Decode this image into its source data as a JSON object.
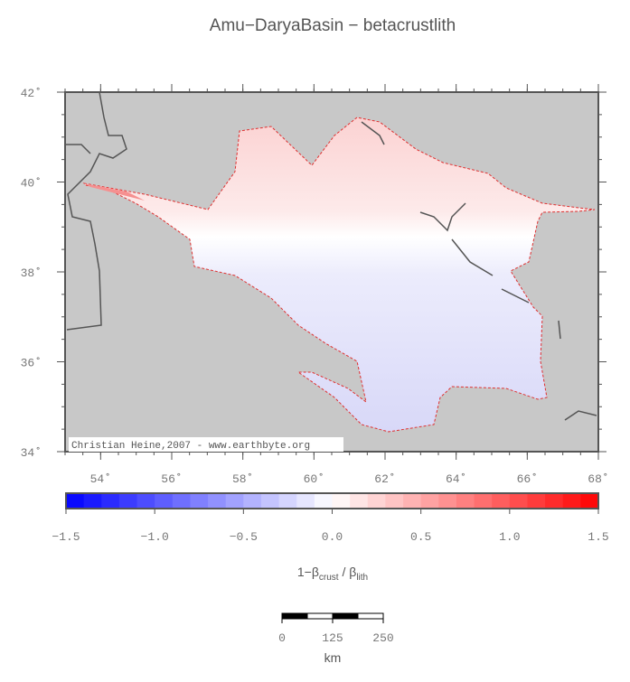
{
  "title": "Amu−DaryaBasin − betacrustlith",
  "map": {
    "lon_lim": [
      53,
      68
    ],
    "lat_lim": [
      34,
      42
    ],
    "lon_ticks": [
      {
        "value": 54,
        "label": "54˚"
      },
      {
        "value": 56,
        "label": "56˚"
      },
      {
        "value": 58,
        "label": "58˚"
      },
      {
        "value": 60,
        "label": "60˚"
      },
      {
        "value": 62,
        "label": "62˚"
      },
      {
        "value": 64,
        "label": "64˚"
      },
      {
        "value": 66,
        "label": "66˚"
      },
      {
        "value": 68,
        "label": "68˚"
      }
    ],
    "lat_ticks": [
      {
        "value": 34,
        "label": "34˚"
      },
      {
        "value": 36,
        "label": "36˚"
      },
      {
        "value": 38,
        "label": "38˚"
      },
      {
        "value": 40,
        "label": "40˚"
      },
      {
        "value": 42,
        "label": "42˚"
      }
    ],
    "credit": "Christian Heine,2007 - www.earthbyte.org"
  },
  "colorbar": {
    "lim": [
      -1.5,
      1.5
    ],
    "colors": [
      "#0000ff",
      "#ffffff",
      "#ff0000"
    ],
    "ticks": [
      {
        "value": -1.5,
        "label": "−1.5"
      },
      {
        "value": -1.0,
        "label": "−1.0"
      },
      {
        "value": -0.5,
        "label": "−0.5"
      },
      {
        "value": 0,
        "label": "0.0"
      },
      {
        "value": 0.5,
        "label": "0.5"
      },
      {
        "value": 1.0,
        "label": "1.0"
      },
      {
        "value": 1.5,
        "label": "1.5"
      }
    ],
    "label": [
      "1−β",
      "crust",
      " / β",
      "lith"
    ]
  },
  "scale_bar": {
    "lim": [
      0,
      250
    ],
    "ticks": [
      0,
      125,
      250
    ],
    "unit": "km"
  }
}
